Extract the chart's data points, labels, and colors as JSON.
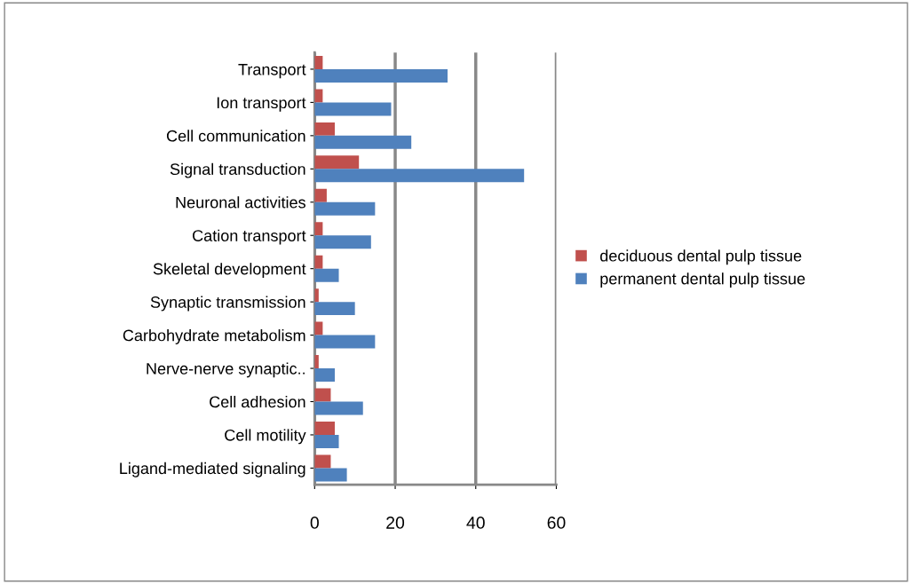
{
  "chart_data": {
    "type": "bar",
    "orientation": "horizontal",
    "categories": [
      "Transport",
      "Ion transport",
      "Cell communication",
      "Signal transduction",
      "Neuronal activities",
      "Cation transport",
      "Skeletal development",
      "Synaptic transmission",
      "Carbohydrate metabolism",
      "Nerve-nerve synaptic..",
      "Cell adhesion",
      "Cell motility",
      "Ligand-mediated signaling"
    ],
    "series": [
      {
        "name": "deciduous dental pulp tissue",
        "color": "#c0504d",
        "values": [
          2,
          2,
          5,
          11,
          3,
          2,
          2,
          1,
          2,
          1,
          4,
          5,
          4
        ]
      },
      {
        "name": "permanent dental pulp tissue",
        "color": "#4f81bd",
        "values": [
          33,
          19,
          24,
          52,
          15,
          14,
          6,
          10,
          15,
          5,
          12,
          6,
          8
        ]
      }
    ],
    "xlim": [
      0,
      60
    ],
    "xticks": [
      0,
      20,
      40,
      60
    ],
    "grid": "x",
    "legend": "right"
  }
}
